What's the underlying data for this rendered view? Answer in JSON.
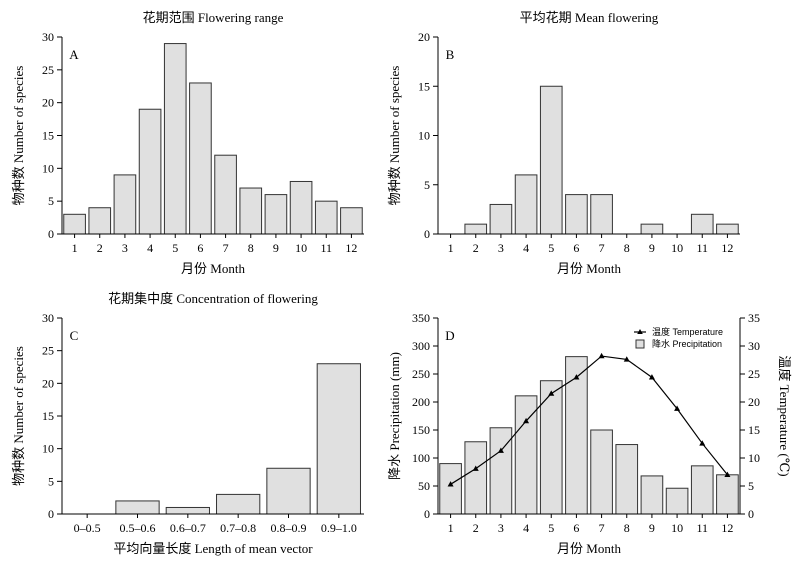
{
  "chart_data": [
    {
      "id": "A",
      "type": "bar",
      "letter": "A",
      "title": "花期范围  Flowering range",
      "xlabel": "月份 Month",
      "ylabel": "物种数 Number of species",
      "categories": [
        "1",
        "2",
        "3",
        "4",
        "5",
        "6",
        "7",
        "8",
        "9",
        "10",
        "11",
        "12"
      ],
      "values": [
        3,
        4,
        9,
        19,
        29,
        23,
        12,
        7,
        6,
        8,
        5,
        4
      ],
      "ylim": [
        0,
        30
      ],
      "yticks": [
        0,
        5,
        10,
        15,
        20,
        25,
        30
      ]
    },
    {
      "id": "B",
      "type": "bar",
      "letter": "B",
      "title": "平均花期  Mean flowering",
      "xlabel": "月份 Month",
      "ylabel": "物种数 Number of species",
      "categories": [
        "1",
        "2",
        "3",
        "4",
        "5",
        "6",
        "7",
        "8",
        "9",
        "10",
        "11",
        "12"
      ],
      "values": [
        0,
        1,
        3,
        6,
        15,
        4,
        4,
        0,
        1,
        0,
        2,
        1
      ],
      "ylim": [
        0,
        20
      ],
      "yticks": [
        0,
        5,
        10,
        15,
        20
      ]
    },
    {
      "id": "C",
      "type": "bar",
      "letter": "C",
      "title": "花期集中度  Concentration of flowering",
      "xlabel": "平均向量长度 Length of mean vector",
      "ylabel": "物种数 Number of species",
      "categories": [
        "0–0.5",
        "0.5–0.6",
        "0.6–0.7",
        "0.7–0.8",
        "0.8–0.9",
        "0.9–1.0"
      ],
      "values": [
        0,
        2,
        1,
        3,
        7,
        23
      ],
      "ylim": [
        0,
        30
      ],
      "yticks": [
        0,
        5,
        10,
        15,
        20,
        25,
        30
      ]
    },
    {
      "id": "D",
      "type": "bar",
      "letter": "D",
      "xlabel": "月份 Month",
      "ylabel": "降水 Precipitation (mm)",
      "y2label": "温度 Temperature (℃)",
      "categories": [
        "1",
        "2",
        "3",
        "4",
        "5",
        "6",
        "7",
        "8",
        "9",
        "10",
        "11",
        "12"
      ],
      "ylim": [
        0,
        350
      ],
      "yticks": [
        0,
        50,
        100,
        150,
        200,
        250,
        300,
        350
      ],
      "y2lim": [
        0,
        35
      ],
      "y2ticks": [
        0,
        5,
        10,
        15,
        20,
        25,
        30,
        35
      ],
      "series": [
        {
          "name": "降水 Precipitation",
          "type": "bar",
          "axis": "left",
          "values": [
            90,
            129,
            154,
            211,
            238,
            281,
            150,
            124,
            68,
            46,
            86,
            70
          ]
        },
        {
          "name": "温度 Temperature",
          "type": "line",
          "axis": "right",
          "values": [
            5.3,
            8.1,
            11.3,
            16.6,
            21.5,
            24.4,
            28.2,
            27.6,
            24.4,
            18.8,
            12.6,
            7.0
          ]
        }
      ],
      "legend": "top-right"
    }
  ]
}
